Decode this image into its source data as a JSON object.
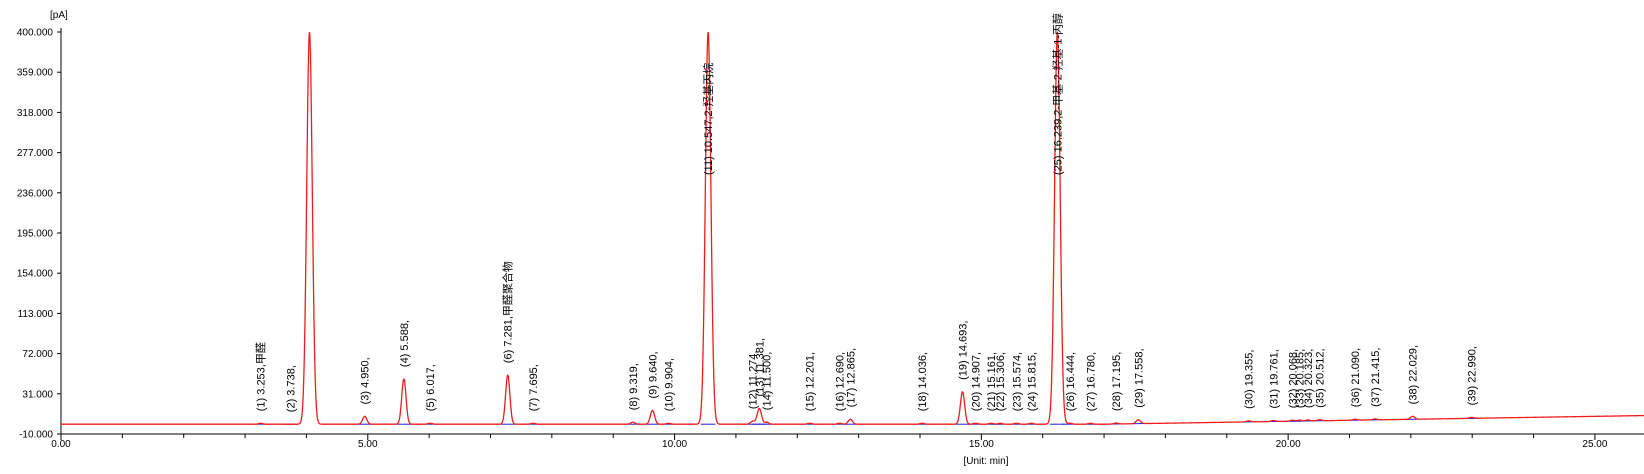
{
  "chart_data": {
    "type": "line",
    "ylabel": "[pA]",
    "xlabel": "[Unit: min]",
    "xlim": [
      0,
      25.8
    ],
    "ylim": [
      -10,
      400
    ],
    "x_ticks": [
      "0.00",
      "5.00",
      "10.00",
      "15.00",
      "20.00",
      "25.00"
    ],
    "y_ticks": [
      "400.000",
      "359.000",
      "318.000",
      "277.000",
      "236.000",
      "195.000",
      "154.000",
      "113.000",
      "72.000",
      "31.000",
      "-10.000"
    ],
    "colors": {
      "trace": "#ee1c1c",
      "baseline": "#2020d0",
      "axis": "#000000"
    },
    "peaks": [
      {
        "rt": 3.253,
        "height": 1,
        "label": "(1) 3.253,甲醛"
      },
      {
        "rt": 3.738,
        "height": 0,
        "label": "(2) 3.738,"
      },
      {
        "rt": 4.05,
        "height": 400,
        "label": ""
      },
      {
        "rt": 4.95,
        "height": 8,
        "label": "(3) 4.950,"
      },
      {
        "rt": 5.588,
        "height": 46,
        "label": "(4) 5.588,"
      },
      {
        "rt": 6.017,
        "height": 1,
        "label": "(5) 6.017,"
      },
      {
        "rt": 7.281,
        "height": 50,
        "label": "(6) 7.281,甲醛聚合物"
      },
      {
        "rt": 7.695,
        "height": 1,
        "label": "(7) 7.695,"
      },
      {
        "rt": 9.319,
        "height": 2,
        "label": "(8) 9.319,"
      },
      {
        "rt": 9.64,
        "height": 14,
        "label": "(9) 9.640,"
      },
      {
        "rt": 9.904,
        "height": 1,
        "label": "(10) 9.904,"
      },
      {
        "rt": 10.547,
        "height": 400,
        "label": "(11) 10.547,2-羟基丙烷"
      },
      {
        "rt": 11.274,
        "height": 3,
        "label": "(12) 11.274,"
      },
      {
        "rt": 11.381,
        "height": 16,
        "label": "(13) 11.381,"
      },
      {
        "rt": 11.5,
        "height": 2,
        "label": "(14) 11.500,"
      },
      {
        "rt": 12.201,
        "height": 1,
        "label": "(15) 12.201,"
      },
      {
        "rt": 12.69,
        "height": 1,
        "label": "(16) 12.690,"
      },
      {
        "rt": 12.865,
        "height": 5,
        "label": "(17) 12.865,"
      },
      {
        "rt": 14.036,
        "height": 1,
        "label": "(18) 14.036,"
      },
      {
        "rt": 14.693,
        "height": 33,
        "label": "(19) 14.693,"
      },
      {
        "rt": 14.907,
        "height": 1,
        "label": "(20) 14.907,"
      },
      {
        "rt": 15.161,
        "height": 1,
        "label": "(21) 15.161,"
      },
      {
        "rt": 15.306,
        "height": 1,
        "label": "(22) 15.306,"
      },
      {
        "rt": 15.574,
        "height": 1,
        "label": "(23) 15.574,"
      },
      {
        "rt": 15.815,
        "height": 1,
        "label": "(24) 15.815,"
      },
      {
        "rt": 16.239,
        "height": 400,
        "label": "(25) 16.239,2-甲基-2-羟基-1-丙醇"
      },
      {
        "rt": 16.444,
        "height": 1,
        "label": "(26) 16.444,"
      },
      {
        "rt": 16.78,
        "height": 1,
        "label": "(27) 16.780,"
      },
      {
        "rt": 17.195,
        "height": 1,
        "label": "(28) 17.195,"
      },
      {
        "rt": 17.558,
        "height": 4,
        "label": "(29) 17.558,"
      },
      {
        "rt": 19.355,
        "height": 1,
        "label": "(30) 19.355,"
      },
      {
        "rt": 19.761,
        "height": 1,
        "label": "(31) 19.761,"
      },
      {
        "rt": 20.068,
        "height": 1,
        "label": "(32) 20.068,"
      },
      {
        "rt": 20.185,
        "height": 1,
        "label": "(33) 20.185,"
      },
      {
        "rt": 20.323,
        "height": 1,
        "label": "(34) 20.323,"
      },
      {
        "rt": 20.512,
        "height": 1,
        "label": "(35) 20.512,"
      },
      {
        "rt": 21.09,
        "height": 1,
        "label": "(36) 21.090,"
      },
      {
        "rt": 21.415,
        "height": 1,
        "label": "(37) 21.415,"
      },
      {
        "rt": 22.029,
        "height": 3,
        "label": "(38) 22.029,"
      },
      {
        "rt": 22.99,
        "height": 1,
        "label": "(39) 22.990,"
      }
    ]
  }
}
